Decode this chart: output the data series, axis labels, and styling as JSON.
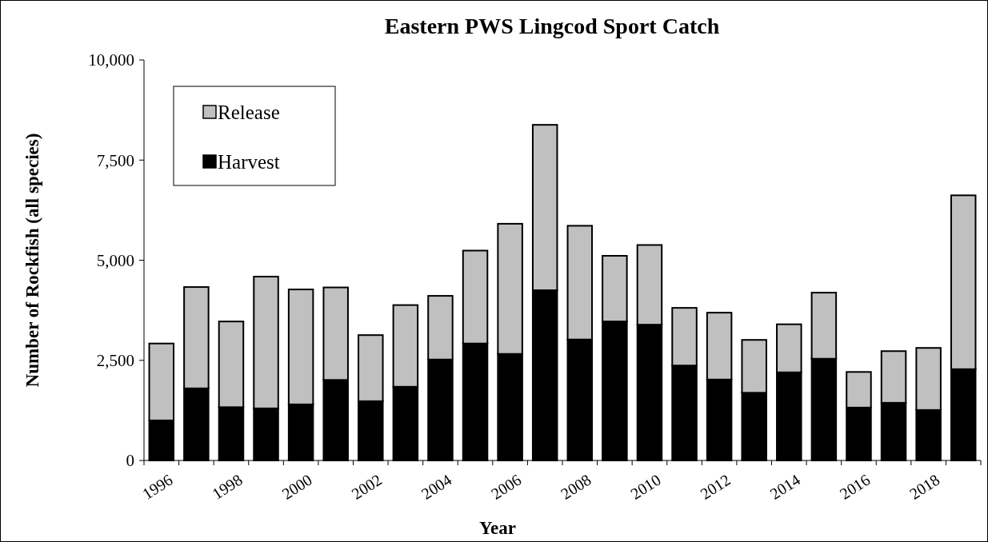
{
  "chart_data": {
    "type": "bar",
    "title": "Eastern PWS Lingcod Sport Catch",
    "xlabel": "Year",
    "ylabel": "Number of Rockfish (all species)",
    "categories": [
      "1996",
      null,
      "1998",
      null,
      "2000",
      null,
      "2002",
      null,
      "2004",
      null,
      "2006",
      null,
      "2008",
      null,
      "2010",
      null,
      "2012",
      null,
      "2014",
      null,
      "2016",
      null,
      "2018",
      null
    ],
    "stacked": true,
    "series": [
      {
        "name": "Harvest",
        "color": "#000000",
        "values": [
          1000,
          1800,
          1330,
          1300,
          1400,
          2010,
          1480,
          1840,
          2520,
          2920,
          2660,
          4250,
          3020,
          3470,
          3390,
          2370,
          2020,
          1690,
          2200,
          2540,
          1320,
          1440,
          1260,
          2280
        ]
      },
      {
        "name": "Release",
        "color": "#c0c0c0",
        "values": [
          1920,
          2530,
          2140,
          3290,
          2870,
          2310,
          1650,
          2040,
          1590,
          2320,
          3250,
          4130,
          2840,
          1640,
          1990,
          1440,
          1670,
          1320,
          1200,
          1650,
          890,
          1290,
          1550,
          4340
        ]
      }
    ],
    "ylim": [
      0,
      10000
    ],
    "yticks": [
      {
        "value": 0,
        "label": "0"
      },
      {
        "value": 2500,
        "label": "2,500"
      },
      {
        "value": 5000,
        "label": "5,000"
      },
      {
        "value": 7500,
        "label": "7,500"
      },
      {
        "value": 10000,
        "label": "10,000"
      }
    ],
    "grid": false,
    "legend": "top left"
  }
}
